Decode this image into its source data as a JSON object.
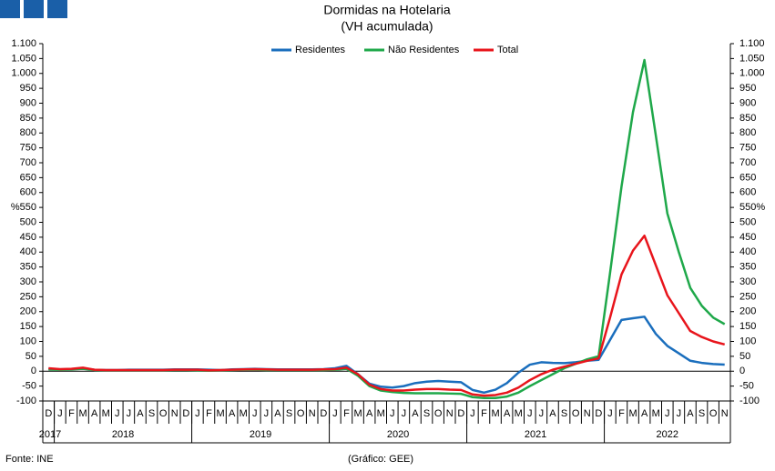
{
  "chart_data": {
    "type": "line",
    "title": "Dormidas na Hotelaria",
    "subtitle": "(VH acumulada)",
    "source": "Fonte: INE",
    "credit": "(Gráfico: GEE)",
    "groups": [
      {
        "name": "2017",
        "categories": [
          "D"
        ]
      },
      {
        "name": "2018",
        "categories": [
          "J",
          "F",
          "M",
          "A",
          "M",
          "J",
          "J",
          "A",
          "S",
          "O",
          "N",
          "D"
        ]
      },
      {
        "name": "2019",
        "categories": [
          "J",
          "F",
          "M",
          "A",
          "M",
          "J",
          "J",
          "A",
          "S",
          "O",
          "N",
          "D"
        ]
      },
      {
        "name": "2020",
        "categories": [
          "J",
          "F",
          "M",
          "A",
          "M",
          "J",
          "J",
          "A",
          "S",
          "O",
          "N",
          "D"
        ]
      },
      {
        "name": "2021",
        "categories": [
          "J",
          "F",
          "M",
          "A",
          "M",
          "J",
          "J",
          "A",
          "S",
          "O",
          "N",
          "D"
        ]
      },
      {
        "name": "2022",
        "categories": [
          "J",
          "F",
          "M",
          "A",
          "M",
          "J",
          "J",
          "A",
          "S",
          "O",
          "N"
        ]
      }
    ],
    "series": [
      {
        "name": "Residentes",
        "color": "#1a6ebd",
        "values": [
          8,
          6,
          7,
          10,
          5,
          4,
          4,
          5,
          5,
          5,
          5,
          6,
          6,
          6,
          5,
          4,
          6,
          7,
          8,
          7,
          6,
          6,
          6,
          6,
          7,
          10,
          18,
          -10,
          -42,
          -52,
          -55,
          -50,
          -40,
          -35,
          -33,
          -35,
          -37,
          -63,
          -72,
          -62,
          -40,
          -5,
          22,
          30,
          28,
          27,
          30,
          35,
          38,
          105,
          172,
          178,
          183,
          125,
          85,
          60,
          35,
          28,
          24,
          22
        ]
      },
      {
        "name": "Não Residentes",
        "color": "#1fa84a",
        "values": [
          6,
          5,
          6,
          8,
          4,
          3,
          3,
          3,
          3,
          3,
          3,
          4,
          4,
          3,
          2,
          3,
          4,
          5,
          5,
          4,
          4,
          4,
          4,
          4,
          4,
          5,
          8,
          -15,
          -50,
          -65,
          -70,
          -73,
          -74,
          -74,
          -74,
          -75,
          -76,
          -87,
          -90,
          -90,
          -85,
          -72,
          -50,
          -30,
          -10,
          10,
          25,
          40,
          50,
          330,
          620,
          870,
          1045,
          790,
          530,
          400,
          280,
          220,
          180,
          158
        ]
      },
      {
        "name": "Total",
        "color": "#e8141b",
        "values": [
          10,
          7,
          8,
          12,
          5,
          4,
          4,
          4,
          4,
          4,
          4,
          5,
          5,
          5,
          3,
          4,
          5,
          6,
          7,
          6,
          5,
          5,
          5,
          5,
          6,
          7,
          12,
          -10,
          -45,
          -60,
          -65,
          -65,
          -62,
          -60,
          -60,
          -62,
          -63,
          -78,
          -82,
          -80,
          -72,
          -55,
          -30,
          -10,
          5,
          15,
          25,
          35,
          43,
          180,
          325,
          405,
          455,
          355,
          255,
          195,
          135,
          115,
          100,
          90
        ]
      }
    ],
    "legend": "top",
    "ylim": [
      -100,
      1100
    ],
    "yticks": [
      {
        "value": 1100,
        "label": "1.100"
      },
      {
        "value": 1050,
        "label": "1.050"
      },
      {
        "value": 1000,
        "label": "1.000"
      },
      950,
      900,
      850,
      800,
      750,
      700,
      650,
      600,
      {
        "value": 550,
        "label": "%550"
      },
      500,
      450,
      400,
      350,
      300,
      250,
      200,
      150,
      100,
      50,
      0,
      -50,
      -100
    ],
    "y2lim": [
      -100,
      1100
    ],
    "y2ticks": [
      {
        "value": 1100,
        "label": "1.100"
      },
      {
        "value": 1050,
        "label": "1.050"
      },
      {
        "value": 1000,
        "label": "1.000"
      },
      950,
      900,
      850,
      800,
      750,
      700,
      650,
      600,
      {
        "value": 550,
        "label": "550%"
      },
      500,
      450,
      400,
      350,
      300,
      250,
      200,
      150,
      100,
      50,
      0,
      -50,
      -100
    ]
  }
}
